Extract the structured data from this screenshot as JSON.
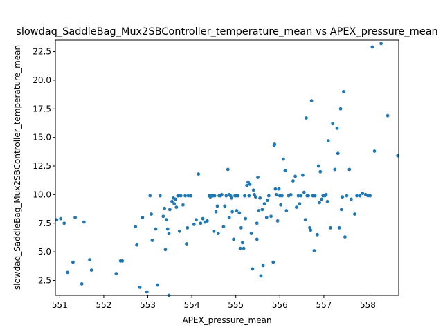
{
  "chart_data": {
    "type": "scatter",
    "title": "slowdaq_SaddleBag_Mux2SBController_temperature_mean vs APEX_pressure_mean",
    "xlabel": "APEX_pressure_mean",
    "ylabel": "slowdaq_SaddleBag_Mux2SBController_temperature_mean",
    "xlim": [
      550.9,
      558.7
    ],
    "ylim": [
      1.2,
      23.5
    ],
    "xticks": [
      "551",
      "552",
      "553",
      "554",
      "555",
      "556",
      "557",
      "558"
    ],
    "yticks": [
      "2.5",
      "5.0",
      "7.5",
      "10.0",
      "12.5",
      "15.0",
      "17.5",
      "20.0",
      "22.5"
    ],
    "grid": false,
    "marker_color": "#1f77b4",
    "series": [
      {
        "points": [
          [
            550.93,
            7.8
          ],
          [
            551.02,
            7.9
          ],
          [
            551.1,
            7.5
          ],
          [
            551.18,
            3.2
          ],
          [
            551.3,
            4.1
          ],
          [
            551.35,
            8.0
          ],
          [
            551.5,
            2.2
          ],
          [
            551.55,
            7.6
          ],
          [
            551.68,
            4.3
          ],
          [
            551.72,
            3.4
          ],
          [
            552.28,
            3.1
          ],
          [
            552.38,
            4.2
          ],
          [
            552.42,
            4.2
          ],
          [
            552.72,
            7.2
          ],
          [
            552.75,
            5.6
          ],
          [
            552.82,
            1.9
          ],
          [
            552.88,
            8.0
          ],
          [
            552.98,
            1.5
          ],
          [
            553.05,
            9.9
          ],
          [
            553.08,
            8.3
          ],
          [
            553.1,
            6.0
          ],
          [
            553.18,
            7.0
          ],
          [
            553.22,
            2.1
          ],
          [
            553.28,
            9.9
          ],
          [
            553.35,
            8.1
          ],
          [
            553.38,
            8.8
          ],
          [
            553.4,
            5.2
          ],
          [
            553.42,
            7.8
          ],
          [
            553.45,
            7.0
          ],
          [
            553.48,
            6.6
          ],
          [
            553.5,
            8.7
          ],
          [
            553.55,
            9.4
          ],
          [
            553.58,
            9.7
          ],
          [
            553.6,
            9.2
          ],
          [
            553.63,
            9.6
          ],
          [
            553.65,
            8.9
          ],
          [
            553.68,
            9.9
          ],
          [
            553.7,
            9.9
          ],
          [
            553.72,
            6.8
          ],
          [
            553.75,
            9.9
          ],
          [
            553.8,
            9.1
          ],
          [
            553.85,
            9.9
          ],
          [
            553.88,
            5.7
          ],
          [
            553.9,
            7.1
          ],
          [
            553.92,
            9.9
          ],
          [
            553.98,
            9.9
          ],
          [
            553.48,
            1.2
          ],
          [
            554.05,
            7.4
          ],
          [
            554.1,
            7.8
          ],
          [
            554.15,
            11.8
          ],
          [
            554.2,
            7.5
          ],
          [
            554.25,
            7.9
          ],
          [
            554.3,
            7.6
          ],
          [
            554.35,
            7.7
          ],
          [
            554.4,
            9.9
          ],
          [
            554.42,
            9.8
          ],
          [
            554.45,
            9.9
          ],
          [
            554.48,
            9.9
          ],
          [
            554.5,
            6.8
          ],
          [
            554.52,
            9.9
          ],
          [
            554.55,
            8.5
          ],
          [
            554.58,
            9.0
          ],
          [
            554.6,
            6.6
          ],
          [
            554.62,
            9.9
          ],
          [
            554.65,
            9.9
          ],
          [
            554.68,
            10.0
          ],
          [
            554.72,
            7.2
          ],
          [
            554.75,
            9.0
          ],
          [
            554.78,
            9.9
          ],
          [
            554.82,
            12.2
          ],
          [
            554.85,
            10.0
          ],
          [
            554.85,
            8.0
          ],
          [
            554.88,
            9.9
          ],
          [
            554.9,
            9.7
          ],
          [
            554.92,
            8.5
          ],
          [
            554.95,
            6.1
          ],
          [
            554.98,
            9.9
          ],
          [
            555.0,
            9.9
          ],
          [
            555.02,
            8.6
          ],
          [
            555.05,
            9.9
          ],
          [
            555.08,
            8.4
          ],
          [
            555.1,
            5.3
          ],
          [
            555.12,
            7.1
          ],
          [
            555.15,
            5.8
          ],
          [
            555.18,
            5.3
          ],
          [
            555.2,
            9.9
          ],
          [
            555.22,
            7.9
          ],
          [
            555.25,
            10.8
          ],
          [
            555.28,
            11.1
          ],
          [
            555.3,
            9.9
          ],
          [
            555.32,
            10.9
          ],
          [
            555.35,
            6.6
          ],
          [
            555.38,
            3.5
          ],
          [
            555.4,
            10.4
          ],
          [
            555.42,
            10.0
          ],
          [
            555.45,
            9.8
          ],
          [
            555.48,
            6.1
          ],
          [
            555.48,
            7.5
          ],
          [
            555.5,
            11.5
          ],
          [
            555.52,
            8.6
          ],
          [
            555.55,
            9.7
          ],
          [
            555.57,
            2.9
          ],
          [
            555.6,
            8.7
          ],
          [
            555.62,
            3.8
          ],
          [
            555.65,
            9.2
          ],
          [
            555.7,
            8.0
          ],
          [
            555.72,
            9.5
          ],
          [
            555.75,
            9.9
          ],
          [
            555.8,
            8.1
          ],
          [
            555.85,
            4.1
          ],
          [
            555.87,
            14.3
          ],
          [
            555.88,
            14.4
          ],
          [
            555.9,
            10.5
          ],
          [
            555.92,
            10.0
          ],
          [
            555.95,
            7.7
          ],
          [
            555.98,
            10.5
          ],
          [
            556.0,
            9.9
          ],
          [
            556.02,
            9.1
          ],
          [
            556.05,
            9.9
          ],
          [
            556.08,
            13.1
          ],
          [
            556.12,
            12.1
          ],
          [
            556.15,
            8.6
          ],
          [
            556.2,
            9.9
          ],
          [
            556.25,
            10.0
          ],
          [
            556.3,
            11.2
          ],
          [
            556.35,
            11.6
          ],
          [
            556.38,
            8.9
          ],
          [
            556.42,
            9.9
          ],
          [
            556.45,
            9.2
          ],
          [
            556.48,
            9.9
          ],
          [
            556.52,
            11.7
          ],
          [
            556.55,
            10.2
          ],
          [
            556.58,
            7.8
          ],
          [
            556.6,
            16.7
          ],
          [
            556.62,
            9.9
          ],
          [
            556.65,
            9.9
          ],
          [
            556.68,
            7.1
          ],
          [
            556.7,
            6.9
          ],
          [
            556.72,
            18.2
          ],
          [
            556.75,
            9.9
          ],
          [
            556.78,
            5.1
          ],
          [
            556.8,
            9.9
          ],
          [
            556.85,
            6.5
          ],
          [
            556.88,
            12.5
          ],
          [
            556.9,
            9.3
          ],
          [
            556.92,
            12.0
          ],
          [
            556.95,
            9.6
          ],
          [
            556.98,
            9.9
          ],
          [
            557.02,
            9.9
          ],
          [
            557.05,
            10.0
          ],
          [
            557.08,
            9.4
          ],
          [
            557.1,
            14.7
          ],
          [
            557.15,
            7.1
          ],
          [
            557.2,
            16.2
          ],
          [
            557.25,
            12.2
          ],
          [
            557.3,
            15.8
          ],
          [
            557.32,
            13.6
          ],
          [
            557.35,
            7.1
          ],
          [
            557.38,
            17.5
          ],
          [
            557.4,
            8.7
          ],
          [
            557.42,
            9.8
          ],
          [
            557.45,
            19.0
          ],
          [
            557.48,
            6.3
          ],
          [
            557.52,
            9.9
          ],
          [
            557.58,
            12.2
          ],
          [
            557.62,
            9.6
          ],
          [
            557.7,
            8.3
          ],
          [
            557.75,
            9.9
          ],
          [
            557.88,
            10.1
          ],
          [
            558.0,
            9.9
          ],
          [
            558.05,
            9.9
          ],
          [
            558.1,
            22.9
          ],
          [
            558.15,
            13.8
          ],
          [
            558.3,
            23.2
          ],
          [
            558.45,
            16.9
          ],
          [
            558.68,
            13.4
          ],
          [
            557.82,
            9.9
          ],
          [
            557.95,
            10.0
          ]
        ]
      }
    ]
  }
}
